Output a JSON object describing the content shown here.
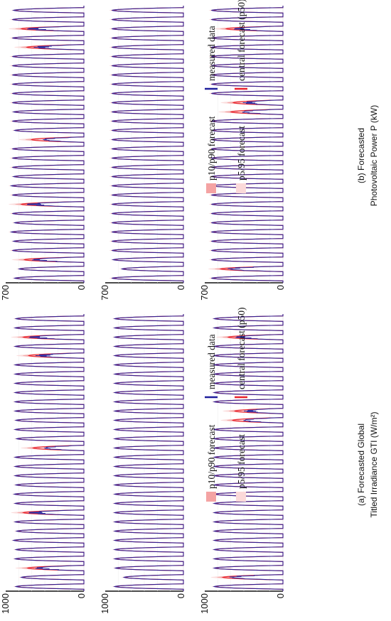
{
  "figure": {
    "left": {
      "caption_line1": "(a) Forecasted Global",
      "caption_line2": "Titled Irradiance GTI (W/m²)",
      "y_max_label": "1000",
      "y_min_label": "0"
    },
    "right": {
      "caption_line1": "(b) Forecasted",
      "caption_line2": "Photovoltaic Power P (kW)",
      "y_max_label": "700",
      "y_min_label": "0"
    }
  },
  "legend": {
    "items": [
      {
        "key": "p5p95",
        "label": "p5/95 forecast",
        "color": "#fbd9d9"
      },
      {
        "key": "p10p90",
        "label": "p10/p90 forecast",
        "color": "#f4a3a3"
      },
      {
        "key": "p50",
        "label": "central forecast (p50)",
        "color": "#e8202a"
      },
      {
        "key": "measured",
        "label": "measured data",
        "color": "#1f1f9c"
      }
    ]
  },
  "chart_data": [
    {
      "type": "line",
      "panel": "a",
      "rows": 3,
      "days_per_row": 30,
      "ylim": [
        0,
        1000
      ],
      "y_ticks": [
        0,
        1000
      ],
      "series_names": [
        "p5/95 forecast",
        "p10/p90 forecast",
        "central forecast (p50)",
        "measured data"
      ],
      "daily_peak_measured": [
        [
          870,
          800,
          640,
          880,
          870,
          900,
          860,
          880,
          720,
          880,
          890,
          870,
          880,
          880,
          880,
          540,
          860,
          880,
          870,
          880,
          880,
          880,
          880,
          880,
          880,
          620,
          880,
          720,
          880,
          870
        ],
        [
          880,
          760,
          870,
          880,
          880,
          880,
          880,
          880,
          880,
          880,
          880,
          880,
          880,
          880,
          880,
          880,
          880,
          880,
          880,
          880,
          880,
          880,
          880,
          880,
          880,
          880,
          880,
          880,
          880,
          880
        ],
        [
          880,
          720,
          880,
          880,
          880,
          880,
          880,
          880,
          880,
          880,
          880,
          880,
          880,
          880,
          880,
          880,
          880,
          880,
          540,
          500,
          880,
          880,
          880,
          880,
          880,
          880,
          880,
          620,
          880,
          880
        ]
      ]
    },
    {
      "type": "line",
      "panel": "b",
      "rows": 3,
      "days_per_row": 30,
      "ylim": [
        0,
        700
      ],
      "y_ticks": [
        0,
        700
      ],
      "series_names": [
        "p5/95 forecast",
        "p10/p90 forecast",
        "central forecast (p50)",
        "measured data"
      ],
      "daily_peak_measured": [
        [
          620,
          580,
          480,
          640,
          630,
          650,
          620,
          640,
          520,
          640,
          650,
          630,
          640,
          640,
          640,
          390,
          620,
          640,
          630,
          640,
          640,
          640,
          640,
          640,
          640,
          450,
          640,
          520,
          640,
          630
        ],
        [
          640,
          550,
          630,
          640,
          640,
          640,
          640,
          640,
          640,
          640,
          640,
          640,
          640,
          640,
          640,
          640,
          640,
          640,
          640,
          640,
          640,
          640,
          640,
          640,
          640,
          640,
          640,
          640,
          640,
          640
        ],
        [
          640,
          520,
          640,
          640,
          640,
          640,
          640,
          640,
          640,
          640,
          640,
          640,
          640,
          640,
          640,
          640,
          640,
          640,
          390,
          360,
          640,
          640,
          640,
          640,
          640,
          640,
          640,
          450,
          640,
          640
        ]
      ]
    }
  ]
}
